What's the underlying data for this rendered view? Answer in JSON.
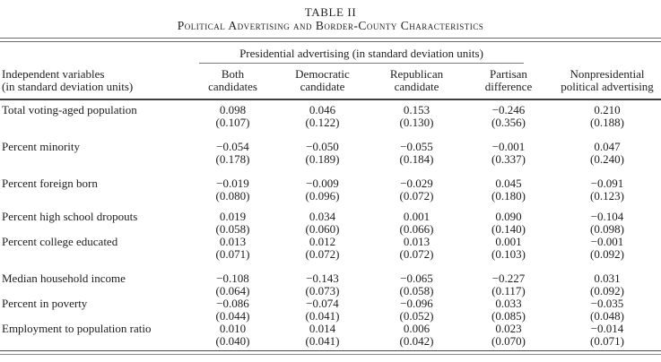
{
  "table": {
    "title": "TABLE II",
    "subtitle": "Political Advertising and Border-County Characteristics",
    "span_header": "Presidential advertising (in standard deviation units)",
    "header": {
      "label_line1": "Independent variables",
      "label_line2": "(in standard deviation units)",
      "columns": [
        {
          "line1": "Both",
          "line2": "candidates"
        },
        {
          "line1": "Democratic",
          "line2": "candidate"
        },
        {
          "line1": "Republican",
          "line2": "candidate"
        },
        {
          "line1": "Partisan",
          "line2": "difference"
        },
        {
          "line1": "Nonpresidential",
          "line2": "political advertising"
        }
      ]
    },
    "rows": [
      {
        "label": "Total voting-aged population",
        "gap_before": false,
        "coefs": [
          "0.098",
          "0.046",
          "0.153",
          "−0.246",
          "0.210"
        ],
        "ses": [
          "(0.107)",
          "(0.122)",
          "(0.130)",
          "(0.356)",
          "(0.188)"
        ]
      },
      {
        "label": "Percent minority",
        "gap_before": true,
        "gap_size": "large",
        "coefs": [
          "−0.054",
          "−0.050",
          "−0.055",
          "−0.001",
          "0.047"
        ],
        "ses": [
          "(0.178)",
          "(0.189)",
          "(0.184)",
          "(0.337)",
          "(0.240)"
        ]
      },
      {
        "label": "Percent foreign born",
        "gap_before": true,
        "gap_size": "large",
        "coefs": [
          "−0.019",
          "−0.009",
          "−0.029",
          "0.045",
          "−0.091"
        ],
        "ses": [
          "(0.080)",
          "(0.096)",
          "(0.072)",
          "(0.180)",
          "(0.123)"
        ]
      },
      {
        "label": "Percent high school dropouts",
        "gap_before": true,
        "gap_size": "small",
        "coefs": [
          "0.019",
          "0.034",
          "0.001",
          "0.090",
          "−0.104"
        ],
        "ses": [
          "(0.058)",
          "(0.060)",
          "(0.066)",
          "(0.140)",
          "(0.098)"
        ]
      },
      {
        "label": "Percent college educated",
        "gap_before": false,
        "coefs": [
          "0.013",
          "0.012",
          "0.013",
          "0.001",
          "−0.001"
        ],
        "ses": [
          "(0.071)",
          "(0.072)",
          "(0.072)",
          "(0.103)",
          "(0.092)"
        ]
      },
      {
        "label": "Median household income",
        "gap_before": true,
        "gap_size": "large",
        "coefs": [
          "−0.108",
          "−0.143",
          "−0.065",
          "−0.227",
          "0.031"
        ],
        "ses": [
          "(0.064)",
          "(0.073)",
          "(0.058)",
          "(0.117)",
          "(0.092)"
        ]
      },
      {
        "label": "Percent in poverty",
        "gap_before": false,
        "coefs": [
          "−0.086",
          "−0.074",
          "−0.096",
          "0.033",
          "−0.035"
        ],
        "ses": [
          "(0.044)",
          "(0.041)",
          "(0.052)",
          "(0.085)",
          "(0.048)"
        ]
      },
      {
        "label": "Employment to population ratio",
        "gap_before": false,
        "coefs": [
          "0.010",
          "0.014",
          "0.006",
          "0.023",
          "−0.014"
        ],
        "ses": [
          "(0.040)",
          "(0.041)",
          "(0.042)",
          "(0.070)",
          "(0.071)"
        ]
      }
    ]
  }
}
